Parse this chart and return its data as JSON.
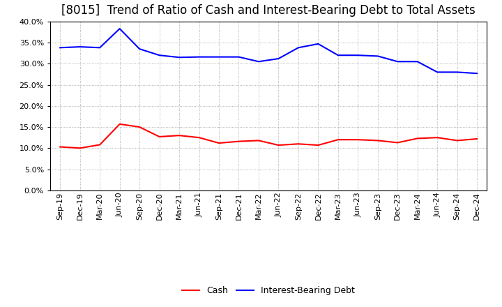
{
  "title": "[8015]  Trend of Ratio of Cash and Interest-Bearing Debt to Total Assets",
  "x_labels": [
    "Sep-19",
    "Dec-19",
    "Mar-20",
    "Jun-20",
    "Sep-20",
    "Dec-20",
    "Mar-21",
    "Jun-21",
    "Sep-21",
    "Dec-21",
    "Mar-22",
    "Jun-22",
    "Sep-22",
    "Dec-22",
    "Mar-23",
    "Jun-23",
    "Sep-23",
    "Dec-23",
    "Mar-24",
    "Jun-24",
    "Sep-24",
    "Dec-24"
  ],
  "cash": [
    10.3,
    10.0,
    10.8,
    15.7,
    15.0,
    12.7,
    13.0,
    12.5,
    11.2,
    11.6,
    11.8,
    10.7,
    11.0,
    10.7,
    12.0,
    12.0,
    11.8,
    11.3,
    12.3,
    12.5,
    11.8,
    12.2
  ],
  "interest_bearing_debt": [
    33.8,
    34.0,
    33.8,
    38.3,
    33.5,
    32.0,
    31.5,
    31.6,
    31.6,
    31.6,
    30.5,
    31.2,
    33.8,
    34.7,
    32.0,
    32.0,
    31.8,
    30.5,
    30.5,
    28.0,
    28.0,
    27.7
  ],
  "cash_color": "#ff0000",
  "debt_color": "#0000ff",
  "ylim": [
    0,
    40
  ],
  "yticks": [
    0,
    5,
    10,
    15,
    20,
    25,
    30,
    35,
    40
  ],
  "background_color": "#ffffff",
  "plot_bg_color": "#ffffff",
  "grid_color": "#999999",
  "legend_cash": "Cash",
  "legend_debt": "Interest-Bearing Debt",
  "title_fontsize": 12,
  "tick_fontsize": 8,
  "legend_fontsize": 9,
  "line_width": 1.5
}
